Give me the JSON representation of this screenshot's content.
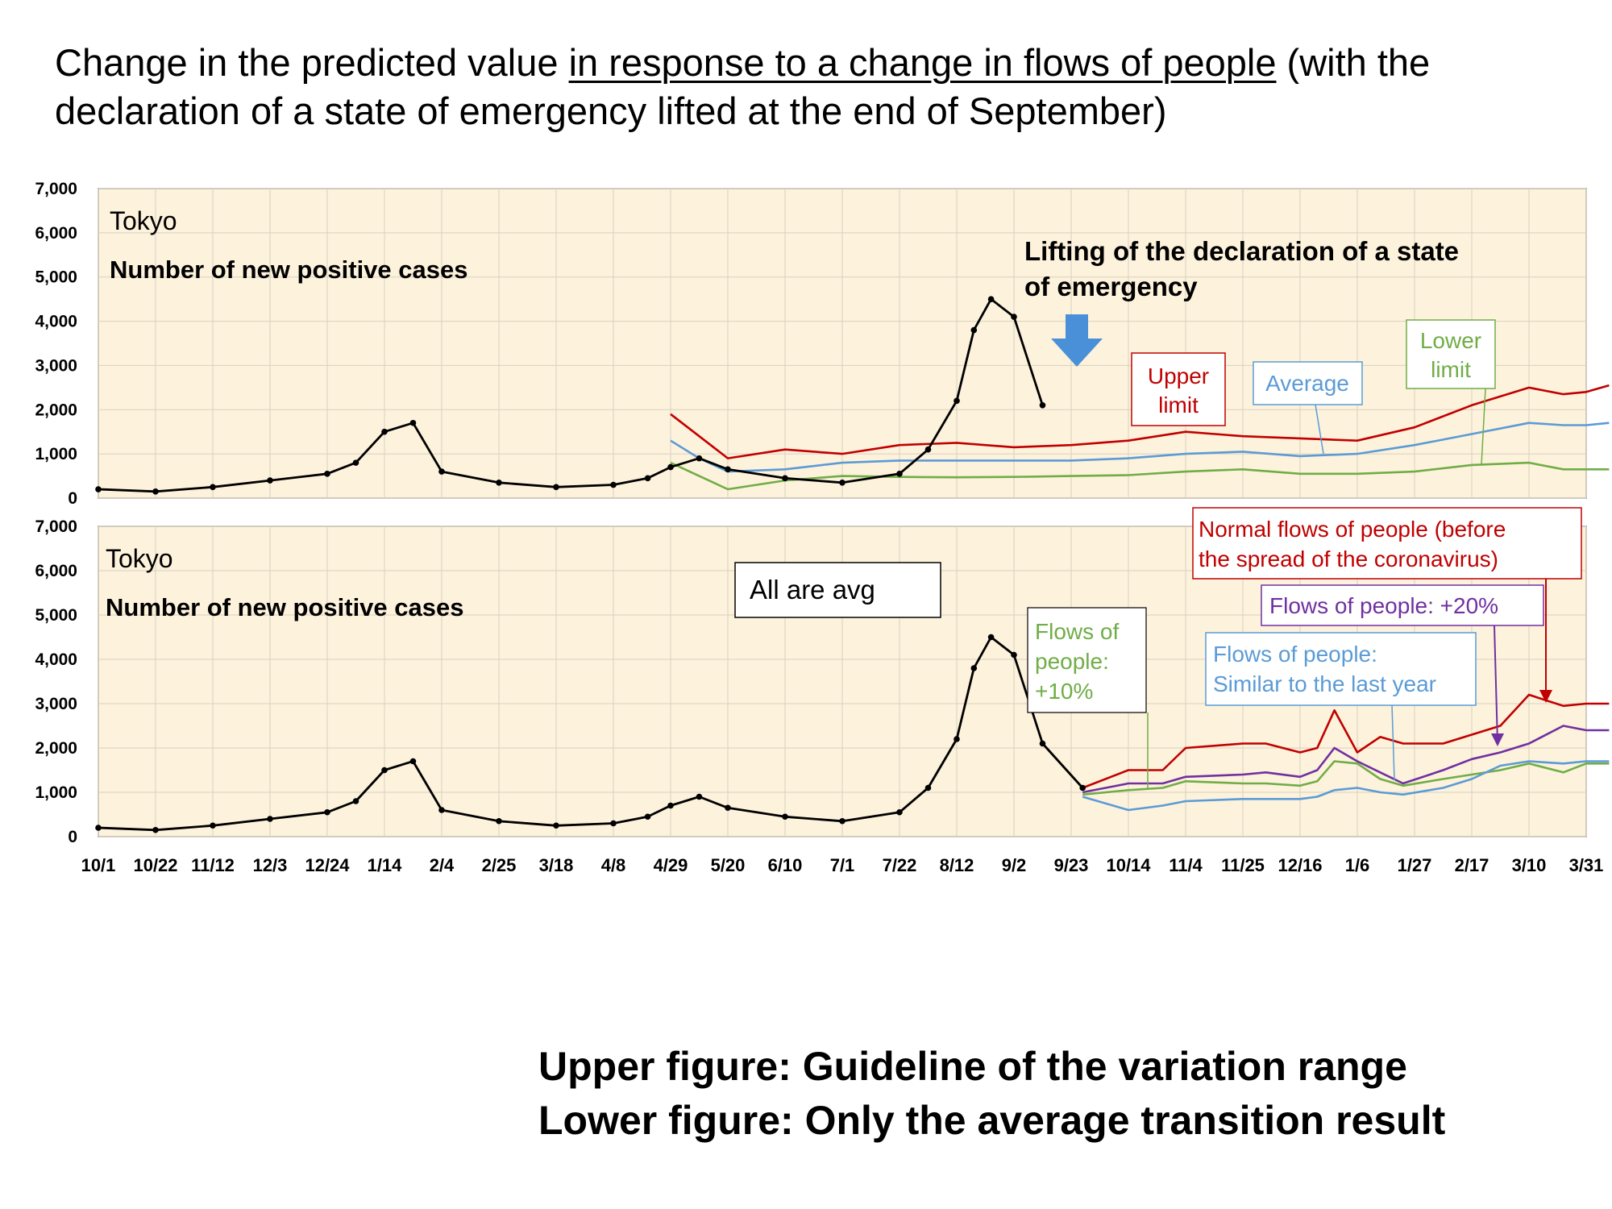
{
  "title": {
    "pre": "Change in the predicted value ",
    "underlined": "in response to a change in flows of people",
    "post": " (with the declaration of a state of emergency lifted at the end of September)"
  },
  "footer": {
    "line1": "Upper figure: Guideline of the variation range",
    "line2": "Lower figure: Only the average transition result"
  },
  "colors": {
    "background": "#fdf2dc",
    "red": "#c00000",
    "blue": "#5b9bd5",
    "green": "#70ad47",
    "purple": "#7030a0",
    "black": "#000000",
    "arrow": "#4a90d9"
  },
  "chart_data": [
    {
      "type": "line",
      "panel": "upper",
      "panel_title": "Tokyo",
      "subtitle": "Number of new positive cases",
      "annotation": "Lifting of the declaration of a state of emergency",
      "ylim": [
        0,
        7000
      ],
      "y_ticks": [
        "0",
        "1,000",
        "2,000",
        "3,000",
        "4,000",
        "5,000",
        "6,000",
        "7,000"
      ],
      "x_ticks": [
        "10/1",
        "10/22",
        "11/12",
        "12/3",
        "12/24",
        "1/14",
        "2/4",
        "2/25",
        "3/18",
        "4/8",
        "4/29",
        "5/20",
        "6/10",
        "7/1",
        "7/22",
        "8/12",
        "9/2",
        "9/23",
        "10/14",
        "11/4",
        "11/25",
        "12/16",
        "1/6",
        "1/27",
        "2/17",
        "3/10",
        "3/31"
      ],
      "grid": true,
      "series": [
        {
          "name": "Upper limit",
          "color": "#c00000",
          "x": [
            10,
            10.5,
            11,
            12,
            13,
            14,
            15,
            16,
            17,
            18,
            19,
            20,
            21,
            22,
            23,
            24,
            25,
            25.6,
            26,
            26.4
          ],
          "values": [
            1900,
            1400,
            900,
            1100,
            1000,
            1200,
            1250,
            1150,
            1200,
            1300,
            1500,
            1400,
            1350,
            1300,
            1600,
            2100,
            2500,
            2350,
            2400,
            2550
          ]
        },
        {
          "name": "Average",
          "color": "#5b9bd5",
          "x": [
            10,
            10.5,
            11,
            12,
            13,
            14,
            15,
            16,
            17,
            18,
            19,
            20,
            21,
            22,
            23,
            24,
            25,
            25.6,
            26,
            26.4
          ],
          "values": [
            1300,
            900,
            600,
            650,
            800,
            850,
            850,
            850,
            850,
            900,
            1000,
            1050,
            950,
            1000,
            1200,
            1450,
            1700,
            1650,
            1650,
            1700
          ]
        },
        {
          "name": "Lower limit",
          "color": "#70ad47",
          "x": [
            10,
            10.5,
            11,
            12,
            13,
            14,
            15,
            16,
            17,
            18,
            19,
            20,
            21,
            22,
            23,
            24,
            25,
            25.6,
            26,
            26.4
          ],
          "values": [
            800,
            500,
            200,
            400,
            500,
            480,
            470,
            480,
            500,
            520,
            600,
            650,
            550,
            550,
            600,
            750,
            800,
            650,
            650,
            650
          ]
        }
      ],
      "observed": {
        "x": [
          0,
          1,
          2,
          3,
          4,
          4.5,
          5,
          5.5,
          6,
          7,
          8,
          9,
          9.6,
          10,
          10.5,
          11,
          12,
          13,
          14,
          14.5,
          15,
          15.3,
          15.6,
          16,
          16.5
        ],
        "values": [
          200,
          150,
          250,
          400,
          550,
          800,
          1500,
          1700,
          600,
          350,
          250,
          300,
          450,
          700,
          900,
          650,
          450,
          350,
          550,
          1100,
          2200,
          3800,
          4500,
          4100,
          2100
        ]
      }
    },
    {
      "type": "line",
      "panel": "lower",
      "panel_title": "Tokyo",
      "subtitle": "Number of new positive cases",
      "annotation": "All are avg",
      "ylim": [
        0,
        7000
      ],
      "y_ticks": [
        "0",
        "1,000",
        "2,000",
        "3,000",
        "4,000",
        "5,000",
        "6,000",
        "7,000"
      ],
      "x_ticks": [
        "10/1",
        "10/22",
        "11/12",
        "12/3",
        "12/24",
        "1/14",
        "2/4",
        "2/25",
        "3/18",
        "4/8",
        "4/29",
        "5/20",
        "6/10",
        "7/1",
        "7/22",
        "8/12",
        "9/2",
        "9/23",
        "10/14",
        "11/4",
        "11/25",
        "12/16",
        "1/6",
        "1/27",
        "2/17",
        "3/10",
        "3/31"
      ],
      "grid": true,
      "series": [
        {
          "name": "Normal flows of people (before the spread of the coronavirus)",
          "color": "#c00000",
          "x": [
            17.2,
            18,
            18.6,
            19,
            20,
            20.4,
            21,
            21.3,
            21.6,
            22,
            22.4,
            22.8,
            23.5,
            24,
            24.5,
            25,
            25.6,
            26,
            26.4
          ],
          "values": [
            1100,
            1500,
            1500,
            2000,
            2100,
            2100,
            1900,
            2000,
            2850,
            1900,
            2250,
            2100,
            2100,
            2300,
            2500,
            3200,
            2950,
            3000,
            3000
          ]
        },
        {
          "name": "Flows of people: +20%",
          "color": "#7030a0",
          "x": [
            17.2,
            18,
            18.6,
            19,
            20,
            20.4,
            21,
            21.3,
            21.6,
            22,
            22.4,
            22.8,
            23.5,
            24,
            24.5,
            25,
            25.6,
            26,
            26.4
          ],
          "values": [
            1000,
            1200,
            1200,
            1350,
            1400,
            1450,
            1350,
            1500,
            2000,
            1700,
            1450,
            1200,
            1500,
            1750,
            1900,
            2100,
            2500,
            2400,
            2400
          ]
        },
        {
          "name": "Flows of people: +10%",
          "color": "#70ad47",
          "x": [
            17.2,
            18,
            18.6,
            19,
            20,
            20.4,
            21,
            21.3,
            21.6,
            22,
            22.4,
            22.8,
            23.5,
            24,
            24.5,
            25,
            25.6,
            26,
            26.4
          ],
          "values": [
            950,
            1050,
            1100,
            1250,
            1200,
            1200,
            1150,
            1250,
            1700,
            1650,
            1300,
            1150,
            1300,
            1400,
            1500,
            1650,
            1450,
            1650,
            1650
          ]
        },
        {
          "name": "Flows of people: Similar to the last year",
          "color": "#5b9bd5",
          "x": [
            17.2,
            18,
            18.6,
            19,
            20,
            20.4,
            21,
            21.3,
            21.6,
            22,
            22.4,
            22.8,
            23.5,
            24,
            24.5,
            25,
            25.6,
            26,
            26.4
          ],
          "values": [
            900,
            600,
            700,
            800,
            850,
            850,
            850,
            900,
            1050,
            1100,
            1000,
            950,
            1100,
            1300,
            1600,
            1700,
            1650,
            1700,
            1700
          ]
        }
      ],
      "observed": {
        "x": [
          0,
          1,
          2,
          3,
          4,
          4.5,
          5,
          5.5,
          6,
          7,
          8,
          9,
          9.6,
          10,
          10.5,
          11,
          12,
          13,
          14,
          14.5,
          15,
          15.3,
          15.6,
          16,
          16.5,
          17.2
        ],
        "values": [
          200,
          150,
          250,
          400,
          550,
          800,
          1500,
          1700,
          600,
          350,
          250,
          300,
          450,
          700,
          900,
          650,
          450,
          350,
          550,
          1100,
          2200,
          3800,
          4500,
          4100,
          2100,
          1100
        ]
      }
    }
  ]
}
